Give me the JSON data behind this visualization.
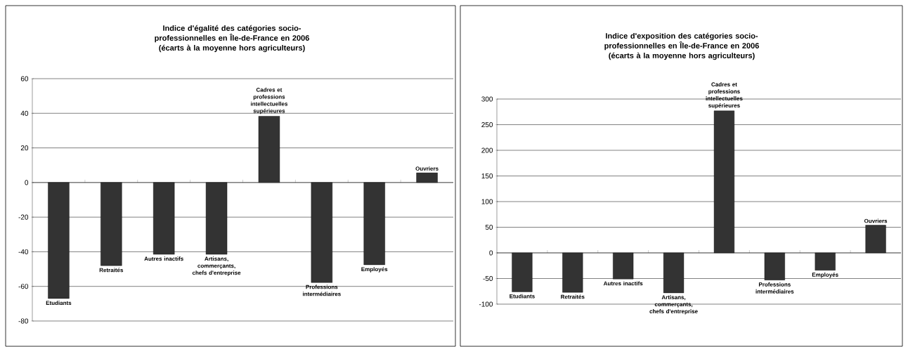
{
  "chart_data": [
    {
      "type": "bar",
      "title": "Indice d'égalité des catégories socio-professionnelles en Île-de-France en 2006 (écarts à la moyenne hors agriculteurs)",
      "categories": [
        "Etudiants",
        "Retraités",
        "Autres inactifs",
        "Artisans, commerçants, chefs d'entreprise",
        "Cadres et professions intellectuelles supérieures",
        "Professions intermédiaires",
        "Employés",
        "Ouvriers"
      ],
      "values": [
        -67,
        -48,
        -41.5,
        -41.5,
        38.3,
        -57.8,
        -47.5,
        5.6
      ],
      "color": "#333333",
      "ylim": [
        -80,
        60
      ],
      "yticks": [
        -80,
        -60,
        -40,
        -20,
        0,
        20,
        40,
        60
      ],
      "grid": "y",
      "tick_labels": "y"
    },
    {
      "type": "bar",
      "title": "Indice d'exposition des catégories socio-professionnelles en Île-de-France en 2006 (écarts à la moyenne hors agriculteurs)",
      "categories": [
        "Etudiants",
        "Retraités",
        "Autres inactifs",
        "Artisans, commerçants, chefs d'entreprise",
        "Cadres et professions intellectuelles supérieures",
        "Professions intermédiaires",
        "Employés",
        "Ouvriers"
      ],
      "values": [
        -76,
        -77,
        -51,
        -78,
        277,
        -53,
        -34,
        54
      ],
      "color": "#333333",
      "ylim": [
        -100,
        300
      ],
      "yticks": [
        -100,
        -50,
        0,
        50,
        100,
        150,
        200,
        250,
        300
      ],
      "grid": "y",
      "tick_labels": "y"
    }
  ]
}
